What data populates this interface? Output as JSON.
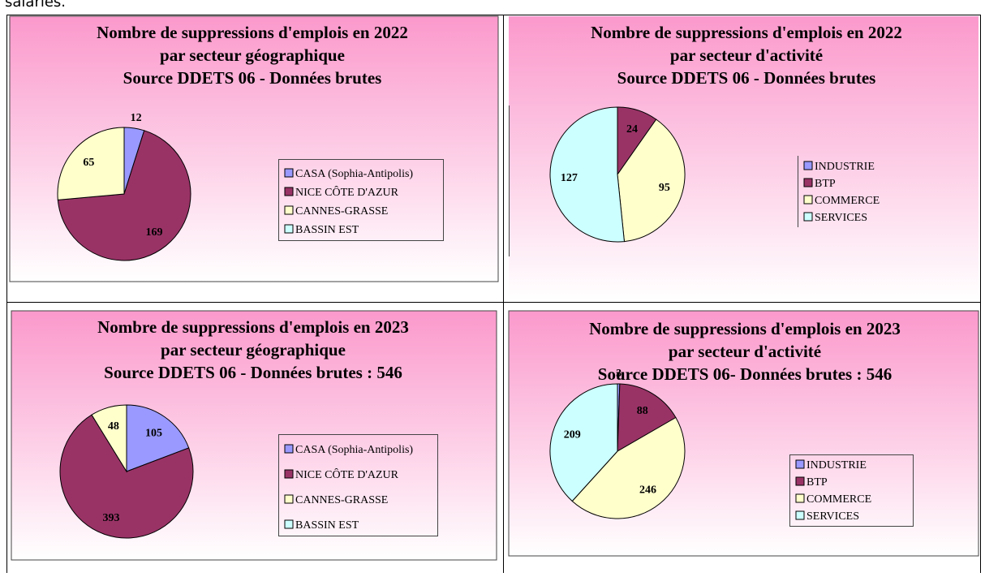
{
  "header_text": "salariés.",
  "chart_data": [
    {
      "type": "pie",
      "title": [
        "Nombre de suppressions d'emplois en 2022",
        "par secteur géographique",
        "Source DDETS 06 - Données brutes"
      ],
      "categories": [
        "CASA (Sophia-Antipolis)",
        "NICE CÔTE D'AZUR",
        "CANNES-GRASSE",
        "BASSIN EST"
      ],
      "values": [
        12,
        169,
        65,
        null
      ],
      "colors": [
        "#9999ff",
        "#993366",
        "#ffffcc",
        "#ccffff"
      ]
    },
    {
      "type": "pie",
      "title": [
        "Nombre de suppressions d'emplois en 2022",
        "par secteur d'activité",
        "Source DDETS 06 - Données brutes"
      ],
      "categories": [
        "INDUSTRIE",
        "BTP",
        "COMMERCE",
        "SERVICES"
      ],
      "values": [
        null,
        24,
        95,
        127
      ],
      "colors": [
        "#9999ff",
        "#993366",
        "#ffffcc",
        "#ccffff"
      ]
    },
    {
      "type": "pie",
      "title": [
        "Nombre de suppressions d'emplois en 2023",
        "par secteur géographique",
        "Source DDETS 06 - Données brutes : 546"
      ],
      "categories": [
        "CASA (Sophia-Antipolis)",
        "NICE CÔTE D'AZUR",
        "CANNES-GRASSE",
        "BASSIN EST"
      ],
      "values": [
        105,
        393,
        48,
        null
      ],
      "colors": [
        "#9999ff",
        "#993366",
        "#ffffcc",
        "#ccffff"
      ]
    },
    {
      "type": "pie",
      "title": [
        "Nombre de suppressions d'emplois en 2023",
        "par secteur d'activité",
        "Source DDETS 06- Données brutes : 546"
      ],
      "categories": [
        "INDUSTRIE",
        "BTP",
        "COMMERCE",
        "SERVICES"
      ],
      "values": [
        3,
        88,
        246,
        209
      ],
      "colors": [
        "#9999ff",
        "#993366",
        "#ffffcc",
        "#ccffff"
      ]
    }
  ]
}
